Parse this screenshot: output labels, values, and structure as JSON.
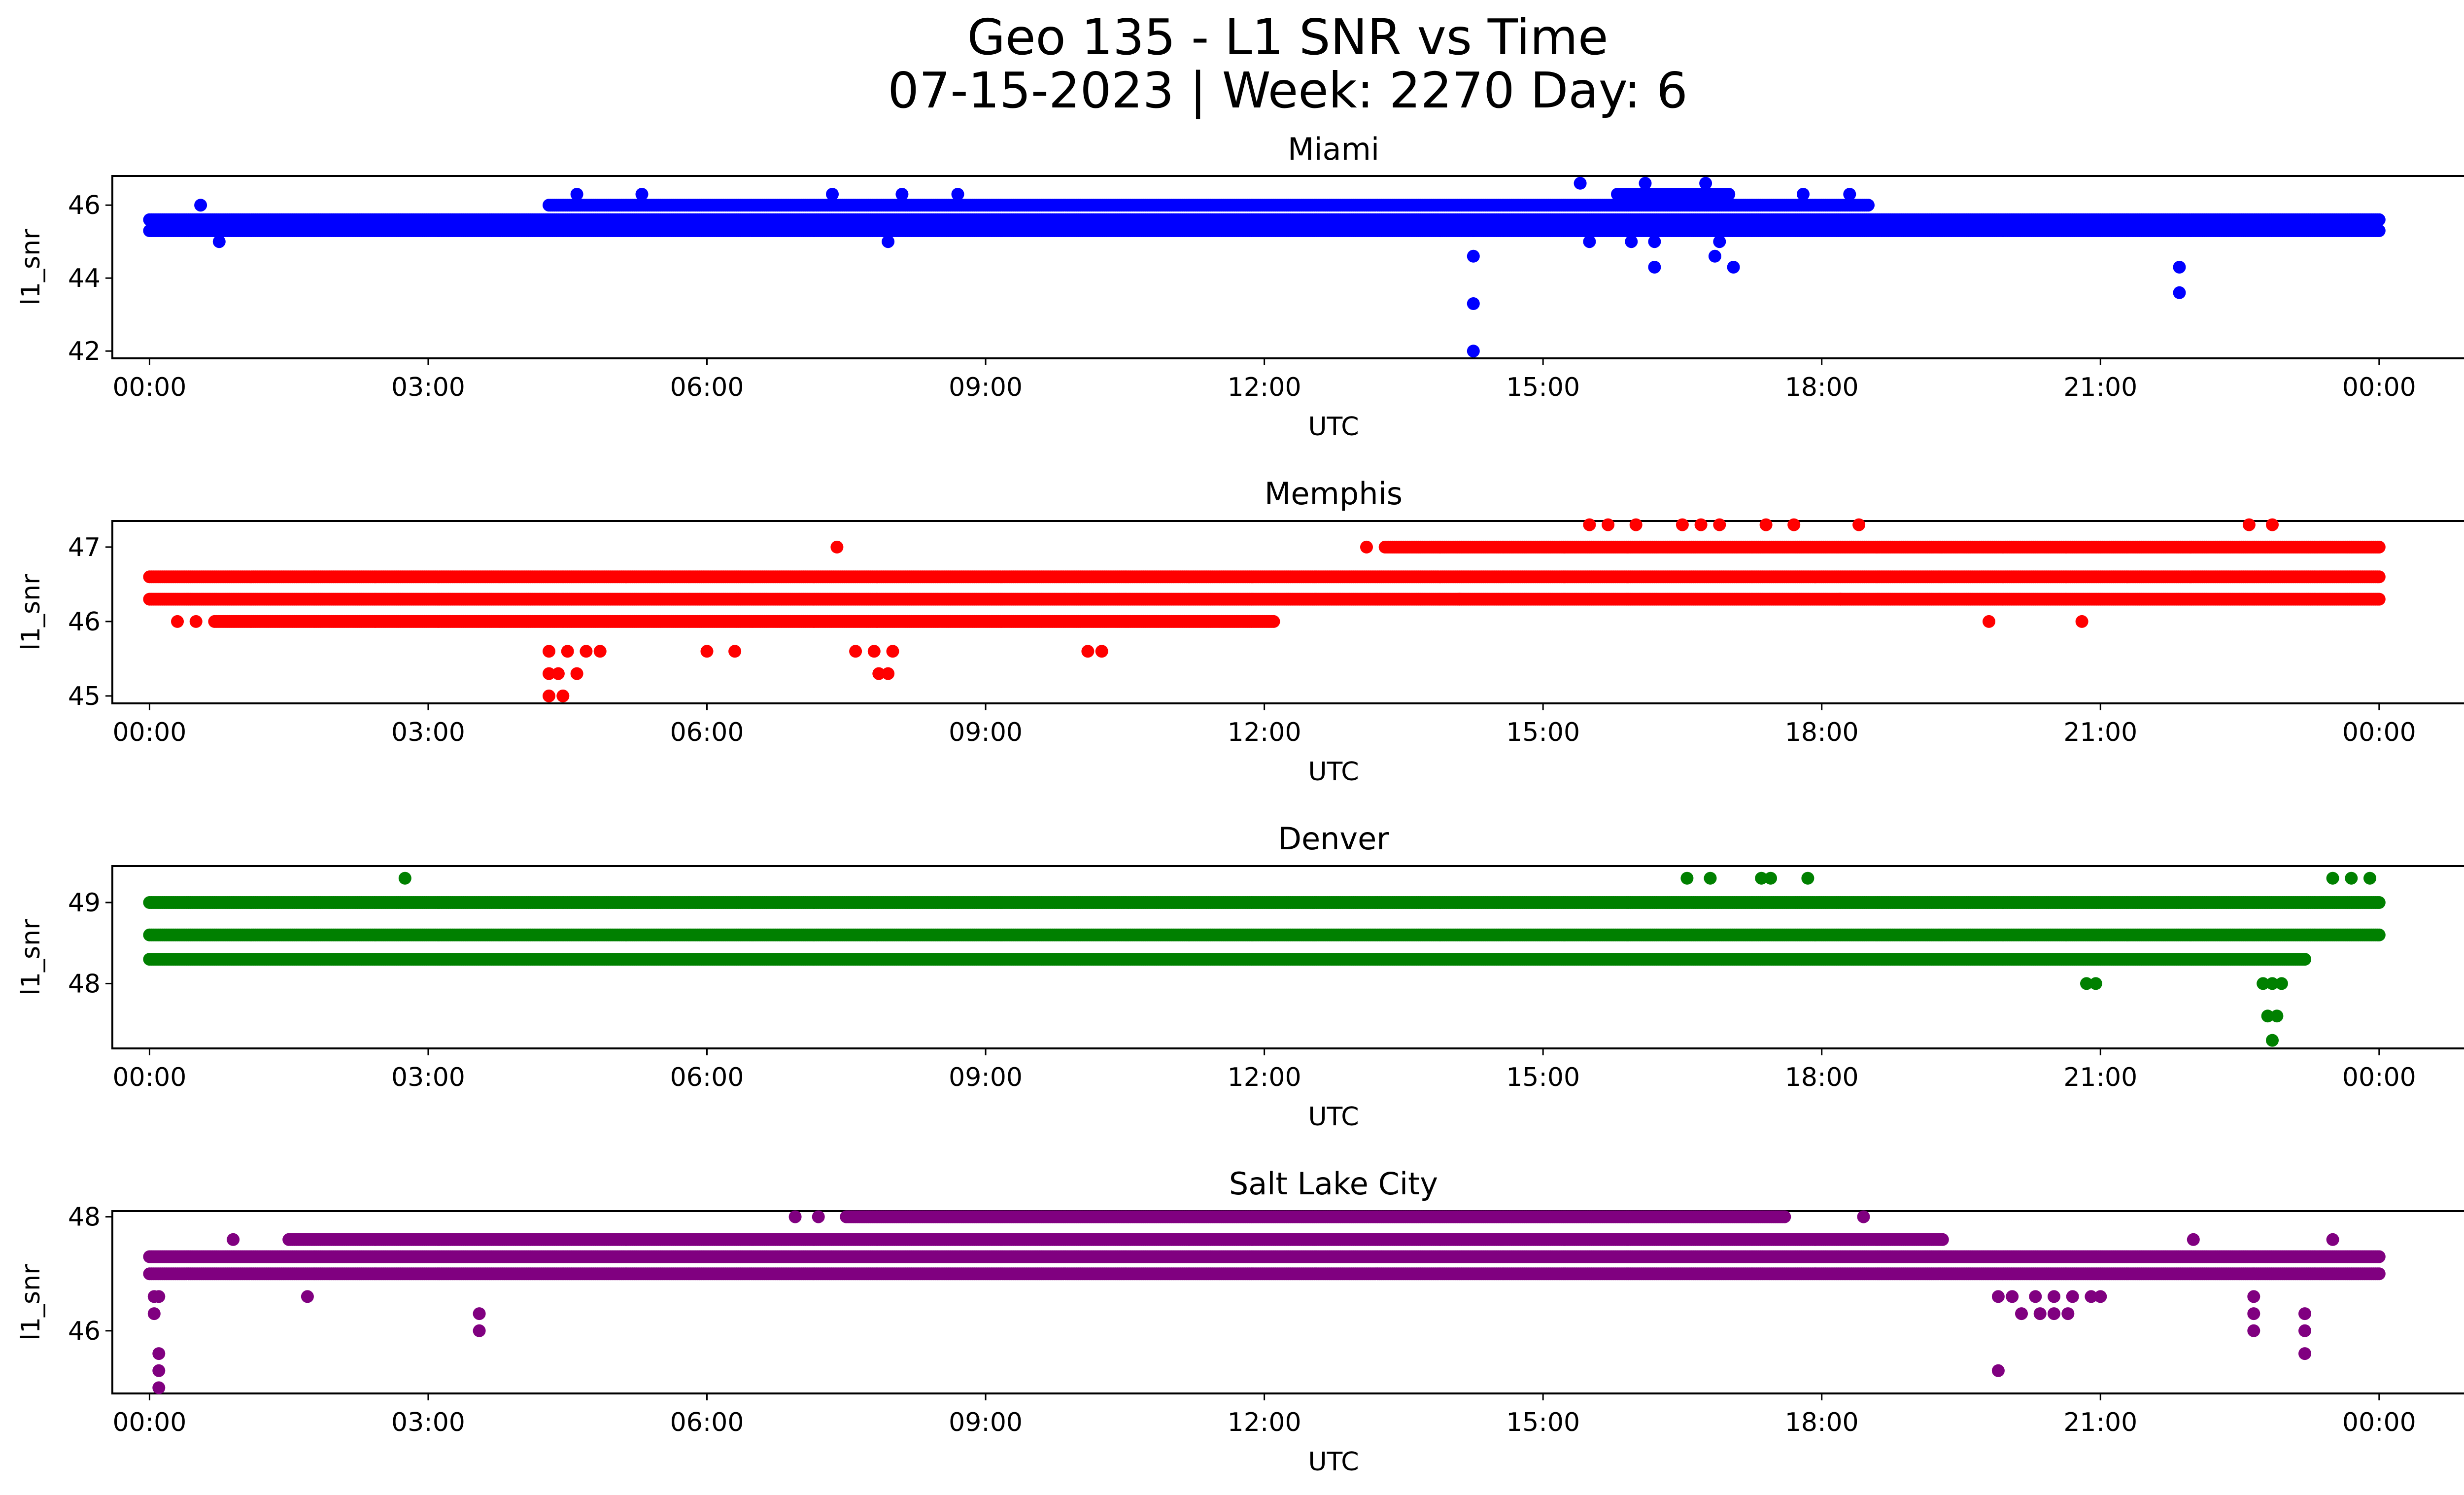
{
  "figure": {
    "title_line1": "Geo 135 - L1 SNR vs Time",
    "title_line2": "07-15-2023 | Week: 2270 Day: 6"
  },
  "chart_data": [
    {
      "type": "scatter",
      "title": "Miami",
      "xlabel": "UTC",
      "ylabel": "l1_snr",
      "color": "#0000ff",
      "xlim": [
        -0.4,
        25.9
      ],
      "ylim": [
        41.8,
        46.8
      ],
      "xticks": [
        "00:00",
        "03:00",
        "06:00",
        "09:00",
        "12:00",
        "15:00",
        "18:00",
        "21:00",
        "00:00"
      ],
      "yticks": [
        42,
        44,
        46
      ],
      "grid": false,
      "x_unit": "hours UTC",
      "bands": [
        {
          "level": 45.3,
          "from": 0.0,
          "to": 24.0
        },
        {
          "level": 45.6,
          "from": 0.0,
          "to": 24.0
        },
        {
          "level": 46.0,
          "from": 4.3,
          "to": 18.5
        },
        {
          "level": 46.3,
          "from": 15.8,
          "to": 17.0
        }
      ],
      "outliers": [
        [
          0.55,
          46.0
        ],
        [
          0.75,
          45.0
        ],
        [
          7.95,
          45.0
        ],
        [
          14.25,
          44.6
        ],
        [
          14.25,
          43.3
        ],
        [
          14.25,
          42.0
        ],
        [
          14.25,
          45.3
        ],
        [
          16.2,
          45.0
        ],
        [
          16.2,
          44.3
        ],
        [
          16.85,
          44.6
        ],
        [
          17.05,
          44.3
        ],
        [
          21.85,
          44.3
        ],
        [
          21.85,
          43.6
        ],
        [
          15.4,
          46.6
        ],
        [
          16.1,
          46.6
        ],
        [
          16.75,
          46.6
        ],
        [
          15.5,
          45.0
        ],
        [
          15.95,
          45.0
        ],
        [
          16.9,
          45.0
        ],
        [
          7.35,
          46.3
        ],
        [
          4.6,
          46.3
        ],
        [
          5.3,
          46.3
        ],
        [
          8.1,
          46.3
        ],
        [
          8.7,
          46.3
        ],
        [
          17.8,
          46.3
        ],
        [
          18.3,
          46.3
        ]
      ]
    },
    {
      "type": "scatter",
      "title": "Memphis",
      "xlabel": "UTC",
      "ylabel": "l1_snr",
      "color": "#ff0000",
      "xlim": [
        -0.4,
        25.9
      ],
      "ylim": [
        44.9,
        47.35
      ],
      "xticks": [
        "00:00",
        "03:00",
        "06:00",
        "09:00",
        "12:00",
        "15:00",
        "18:00",
        "21:00",
        "00:00"
      ],
      "yticks": [
        45,
        46,
        47
      ],
      "grid": false,
      "x_unit": "hours UTC",
      "bands": [
        {
          "level": 46.3,
          "from": 0.0,
          "to": 24.0
        },
        {
          "level": 46.6,
          "from": 0.0,
          "to": 24.0
        },
        {
          "level": 46.0,
          "from": 0.7,
          "to": 12.1
        },
        {
          "level": 47.0,
          "from": 13.3,
          "to": 24.0
        }
      ],
      "outliers": [
        [
          0.3,
          46.0
        ],
        [
          0.5,
          46.0
        ],
        [
          4.3,
          45.6
        ],
        [
          4.5,
          45.6
        ],
        [
          4.7,
          45.6
        ],
        [
          4.85,
          45.6
        ],
        [
          4.3,
          45.3
        ],
        [
          4.4,
          45.3
        ],
        [
          4.6,
          45.3
        ],
        [
          4.3,
          45.0
        ],
        [
          4.45,
          45.0
        ],
        [
          7.6,
          45.6
        ],
        [
          7.8,
          45.6
        ],
        [
          8.0,
          45.6
        ],
        [
          7.85,
          45.3
        ],
        [
          7.95,
          45.3
        ],
        [
          6.0,
          45.6
        ],
        [
          6.3,
          45.6
        ],
        [
          10.1,
          45.6
        ],
        [
          10.25,
          45.6
        ],
        [
          7.4,
          47.0
        ],
        [
          15.5,
          47.3
        ],
        [
          15.7,
          47.3
        ],
        [
          16.0,
          47.3
        ],
        [
          16.5,
          47.3
        ],
        [
          16.7,
          47.3
        ],
        [
          16.9,
          47.3
        ],
        [
          17.4,
          47.3
        ],
        [
          17.7,
          47.3
        ],
        [
          18.4,
          47.3
        ],
        [
          22.6,
          47.3
        ],
        [
          22.85,
          47.3
        ],
        [
          18.2,
          46.3
        ],
        [
          19.8,
          46.0
        ],
        [
          20.8,
          46.0
        ],
        [
          13.1,
          47.0
        ],
        [
          14.1,
          46.3
        ]
      ]
    },
    {
      "type": "scatter",
      "title": "Denver",
      "xlabel": "UTC",
      "ylabel": "l1_snr",
      "color": "#008000",
      "xlim": [
        -0.4,
        25.9
      ],
      "ylim": [
        47.2,
        49.45
      ],
      "xticks": [
        "00:00",
        "03:00",
        "06:00",
        "09:00",
        "12:00",
        "15:00",
        "18:00",
        "21:00",
        "00:00"
      ],
      "yticks": [
        48,
        49
      ],
      "grid": false,
      "x_unit": "hours UTC",
      "bands": [
        {
          "level": 48.6,
          "from": 0.0,
          "to": 24.0
        },
        {
          "level": 49.0,
          "from": 0.0,
          "to": 24.0
        },
        {
          "level": 48.3,
          "from": 0.0,
          "to": 23.2
        }
      ],
      "outliers": [
        [
          2.75,
          49.3
        ],
        [
          16.55,
          49.3
        ],
        [
          16.8,
          49.3
        ],
        [
          17.35,
          49.3
        ],
        [
          17.45,
          49.3
        ],
        [
          17.85,
          49.3
        ],
        [
          23.5,
          49.3
        ],
        [
          23.7,
          49.3
        ],
        [
          23.9,
          49.3
        ],
        [
          20.85,
          48.0
        ],
        [
          20.95,
          48.0
        ],
        [
          22.75,
          48.0
        ],
        [
          22.85,
          48.0
        ],
        [
          22.95,
          48.0
        ],
        [
          22.8,
          47.6
        ],
        [
          22.9,
          47.6
        ],
        [
          22.85,
          47.3
        ],
        [
          3.95,
          48.3
        ],
        [
          16.45,
          48.3
        ]
      ]
    },
    {
      "type": "scatter",
      "title": "Salt Lake City",
      "xlabel": "UTC",
      "ylabel": "l1_snr",
      "color": "#800080",
      "xlim": [
        -0.4,
        25.9
      ],
      "ylim": [
        44.9,
        48.1
      ],
      "xticks": [
        "00:00",
        "03:00",
        "06:00",
        "09:00",
        "12:00",
        "15:00",
        "18:00",
        "21:00",
        "00:00"
      ],
      "yticks": [
        46,
        48
      ],
      "grid": false,
      "x_unit": "hours UTC",
      "bands": [
        {
          "level": 47.0,
          "from": 0.0,
          "to": 24.0
        },
        {
          "level": 47.3,
          "from": 0.0,
          "to": 24.0
        },
        {
          "level": 47.6,
          "from": 1.5,
          "to": 19.3
        },
        {
          "level": 48.0,
          "from": 7.5,
          "to": 17.6
        }
      ],
      "outliers": [
        [
          0.05,
          46.6
        ],
        [
          0.1,
          46.6
        ],
        [
          0.05,
          46.3
        ],
        [
          0.1,
          45.6
        ],
        [
          0.1,
          45.3
        ],
        [
          0.1,
          45.0
        ],
        [
          1.7,
          46.6
        ],
        [
          3.55,
          46.3
        ],
        [
          3.55,
          46.0
        ],
        [
          0.9,
          47.6
        ],
        [
          6.95,
          48.0
        ],
        [
          7.2,
          48.0
        ],
        [
          18.45,
          48.0
        ],
        [
          19.9,
          46.6
        ],
        [
          20.05,
          46.6
        ],
        [
          20.3,
          46.6
        ],
        [
          20.5,
          46.6
        ],
        [
          20.7,
          46.6
        ],
        [
          20.9,
          46.6
        ],
        [
          21.0,
          46.6
        ],
        [
          20.15,
          46.3
        ],
        [
          20.35,
          46.3
        ],
        [
          20.5,
          46.3
        ],
        [
          20.65,
          46.3
        ],
        [
          19.9,
          45.3
        ],
        [
          22.65,
          46.6
        ],
        [
          22.65,
          46.3
        ],
        [
          22.65,
          46.0
        ],
        [
          23.2,
          46.3
        ],
        [
          23.2,
          46.0
        ],
        [
          23.2,
          45.6
        ],
        [
          22.0,
          47.6
        ],
        [
          23.5,
          47.6
        ]
      ]
    }
  ]
}
